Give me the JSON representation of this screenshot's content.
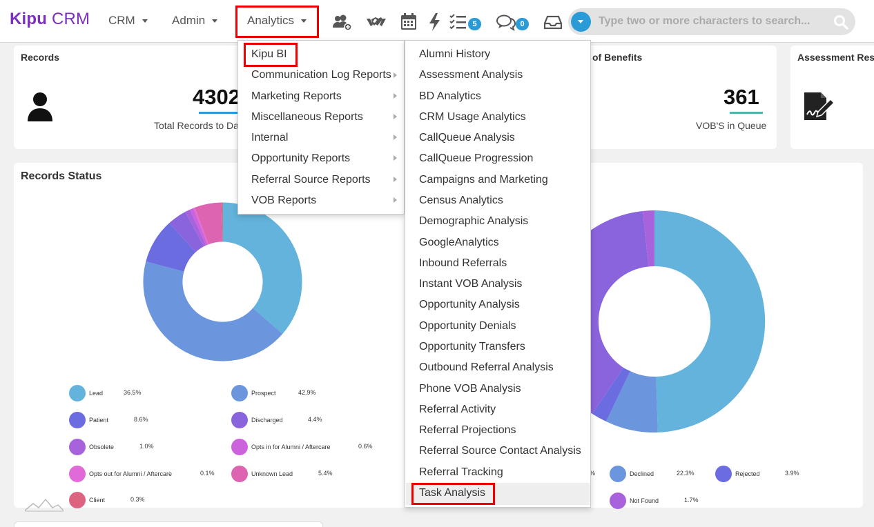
{
  "brand": {
    "name_bold": "Kipu",
    "name_light": " CRM"
  },
  "nav": {
    "crm": "CRM",
    "admin": "Admin",
    "analytics": "Analytics",
    "tasks_badge": "5",
    "chat_badge": "0",
    "icons": [
      "add-user-icon",
      "handshake-icon",
      "calendar-icon",
      "bolt-icon",
      "tasks-list-icon",
      "chat-icon",
      "inbox-icon"
    ]
  },
  "search": {
    "placeholder": "Type two or more characters to search..."
  },
  "cards": {
    "records": {
      "title": "Records",
      "value": "4302",
      "subtitle": "Total Records to Date"
    },
    "benefits": {
      "title": "of Benefits",
      "value": "361",
      "subtitle": "VOB'S in Queue"
    },
    "assessment": {
      "title": "Assessment Resp"
    }
  },
  "records_status": {
    "title": "Records Status",
    "legend": [
      {
        "label": "Lead",
        "pct": "36.5%",
        "color": "#63b3dc"
      },
      {
        "label": "Prospect",
        "pct": "42.9%",
        "color": "#6b96dd"
      },
      {
        "label": "Patient",
        "pct": "8.6%",
        "color": "#6a6ce0"
      },
      {
        "label": "Discharged",
        "pct": "4.4%",
        "color": "#8a64dc"
      },
      {
        "label": "Obsolete",
        "pct": "1.0%",
        "color": "#a862dc"
      },
      {
        "label": "Opts in for Alumni / Aftercare",
        "pct": "0.6%",
        "color": "#cc62dc"
      },
      {
        "label": "Opts out for Alumni / Aftercare",
        "pct": "0.1%",
        "color": "#e06ad8"
      },
      {
        "label": "Unknown Lead",
        "pct": "5.4%",
        "color": "#dc64b0"
      },
      {
        "label": "Client",
        "pct": "0.3%",
        "color": "#dc6480"
      }
    ]
  },
  "vob_status": {
    "legend": [
      {
        "label": "Declined",
        "pct": "22.3%",
        "color": "#6b96dd"
      },
      {
        "label": "Rejected",
        "pct": "3.9%",
        "color": "#6a6ce0"
      },
      {
        "label": "Not Found",
        "pct": "1.7%",
        "color": "#a862dc"
      }
    ],
    "partial_pct": "%"
  },
  "analytics_menu": {
    "items": [
      "Kipu BI",
      "Communication Log Reports",
      "Marketing Reports",
      "Miscellaneous Reports",
      "Internal",
      "Opportunity Reports",
      "Referral Source Reports",
      "VOB Reports"
    ]
  },
  "kipu_bi_submenu": {
    "items": [
      "Alumni History",
      "Assessment Analysis",
      "BD Analytics",
      "CRM Usage Analytics",
      "CallQueue Analysis",
      "CallQueue Progression",
      "Campaigns and Marketing",
      "Census Analytics",
      "Demographic Analysis",
      "GoogleAnalytics",
      "Inbound Referrals",
      "Instant VOB Analysis",
      "Opportunity Analysis",
      "Opportunity Denials",
      "Opportunity Transfers",
      "Outbound Referral Analysis",
      "Phone VOB Analysis",
      "Referral Activity",
      "Referral Projections",
      "Referral Source Contact Analysis",
      "Referral Tracking",
      "Task Analysis"
    ]
  }
}
